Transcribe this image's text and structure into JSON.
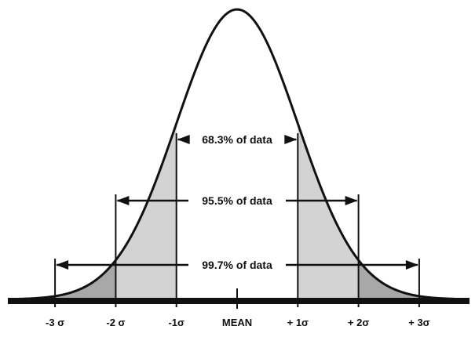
{
  "chart_data": {
    "type": "area",
    "title": "",
    "xlabel": "",
    "ylabel": "",
    "distribution": "normal",
    "mean": 0,
    "sd": 1,
    "xlim": [
      -3.95,
      3.95
    ],
    "tick_labels": [
      {
        "z": -3,
        "label": "-3 σ"
      },
      {
        "z": -2,
        "label": "-2 σ"
      },
      {
        "z": -1,
        "label": "-1σ"
      },
      {
        "z": 0,
        "label": "MEAN"
      },
      {
        "z": 1,
        "label": "+ 1σ"
      },
      {
        "z": 2,
        "label": "+ 2σ"
      },
      {
        "z": 3,
        "label": "+ 3σ"
      }
    ],
    "ranges": [
      {
        "from": -1,
        "to": 1,
        "percent": 68.3,
        "label": "68.3% of data"
      },
      {
        "from": -2,
        "to": 2,
        "percent": 95.5,
        "label": "95.5% of data"
      },
      {
        "from": -3,
        "to": 3,
        "percent": 99.7,
        "label": "99.7% of data"
      }
    ],
    "shaded_bands": [
      {
        "from": -3,
        "to": -2,
        "color": "#a8a8a8"
      },
      {
        "from": -2,
        "to": -1,
        "color": "#d3d3d3"
      },
      {
        "from": 1,
        "to": 2,
        "color": "#d3d3d3"
      },
      {
        "from": 2,
        "to": 3,
        "color": "#a8a8a8"
      }
    ],
    "tail_color": "#555555",
    "curve_color": "#111111",
    "grid": false,
    "legend": "none"
  }
}
